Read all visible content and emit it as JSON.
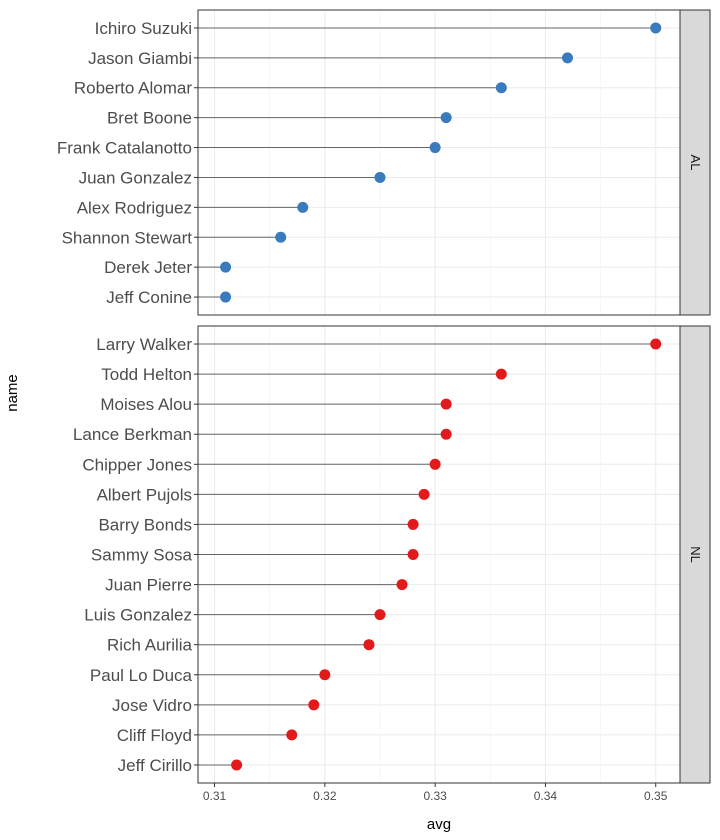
{
  "chart_data": {
    "type": "scatter",
    "style": "lollipop",
    "xlabel": "avg",
    "ylabel": "name",
    "xlim": [
      0.3085,
      0.3522
    ],
    "x_ticks": [
      0.31,
      0.32,
      0.33,
      0.34,
      0.35
    ],
    "x_tick_labels": [
      "0.31",
      "0.32",
      "0.33",
      "0.34",
      "0.35"
    ],
    "grid": true,
    "facets": [
      {
        "label": "AL",
        "color": "#3a7bbd",
        "points": [
          {
            "name": "Ichiro Suzuki",
            "avg": 0.35
          },
          {
            "name": "Jason Giambi",
            "avg": 0.342
          },
          {
            "name": "Roberto Alomar",
            "avg": 0.336
          },
          {
            "name": "Bret Boone",
            "avg": 0.331
          },
          {
            "name": "Frank Catalanotto",
            "avg": 0.33
          },
          {
            "name": "Juan Gonzalez",
            "avg": 0.325
          },
          {
            "name": "Alex Rodriguez",
            "avg": 0.318
          },
          {
            "name": "Shannon Stewart",
            "avg": 0.316
          },
          {
            "name": "Derek Jeter",
            "avg": 0.311
          },
          {
            "name": "Jeff Conine",
            "avg": 0.311
          }
        ]
      },
      {
        "label": "NL",
        "color": "#e31a1c",
        "points": [
          {
            "name": "Larry Walker",
            "avg": 0.35
          },
          {
            "name": "Todd Helton",
            "avg": 0.336
          },
          {
            "name": "Moises Alou",
            "avg": 0.331
          },
          {
            "name": "Lance Berkman",
            "avg": 0.331
          },
          {
            "name": "Chipper Jones",
            "avg": 0.33
          },
          {
            "name": "Albert Pujols",
            "avg": 0.329
          },
          {
            "name": "Barry Bonds",
            "avg": 0.328
          },
          {
            "name": "Sammy Sosa",
            "avg": 0.328
          },
          {
            "name": "Juan Pierre",
            "avg": 0.327
          },
          {
            "name": "Luis Gonzalez",
            "avg": 0.325
          },
          {
            "name": "Rich Aurilia",
            "avg": 0.324
          },
          {
            "name": "Paul Lo Duca",
            "avg": 0.32
          },
          {
            "name": "Jose Vidro",
            "avg": 0.319
          },
          {
            "name": "Cliff Floyd",
            "avg": 0.317
          },
          {
            "name": "Jeff Cirillo",
            "avg": 0.312
          }
        ]
      }
    ]
  }
}
